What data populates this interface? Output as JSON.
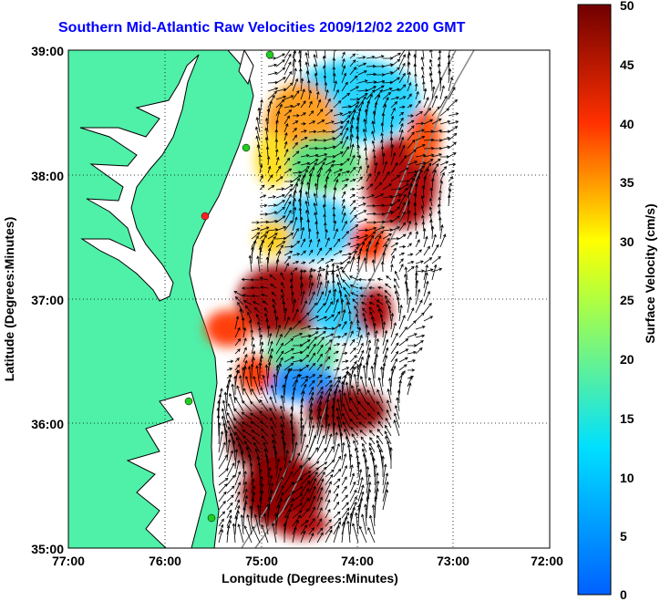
{
  "title": "Southern Mid-Atlantic Raw Velocities 2009/12/02 2200 GMT",
  "x_axis": {
    "label": "Longitude (Degrees:Minutes)",
    "ticks": [
      "77:00",
      "76:00",
      "75:00",
      "74:00",
      "73:00",
      "72:00"
    ]
  },
  "y_axis": {
    "label": "Latitude (Degrees:Minutes)",
    "ticks": [
      "39:00",
      "38:00",
      "37:00",
      "36:00",
      "35:00"
    ]
  },
  "colorbar": {
    "label": "Surface Velocity (cm/s)",
    "ticks": [
      "50",
      "45",
      "40",
      "35",
      "30",
      "25",
      "20",
      "15",
      "10",
      "5",
      "0"
    ],
    "min": 0,
    "max": 50,
    "colormap": [
      "#0000ff",
      "#00ffff",
      "#ffff00",
      "#ff0000",
      "#800000"
    ]
  },
  "colors": {
    "land": "#4ff0a8",
    "ocean": "#ffffff",
    "coastline": "#000000",
    "isobath": "#888888",
    "station_markers": "#22cc22",
    "station_marker_red": "#ff0000",
    "title": "#0000ff"
  }
}
